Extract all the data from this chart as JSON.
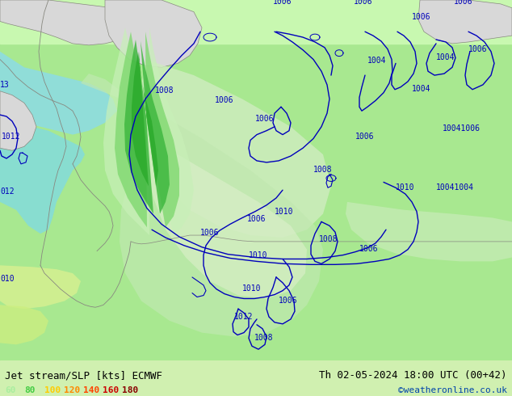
{
  "title_left": "Jet stream/SLP [kts] ECMWF",
  "title_right": "Th 02-05-2024 18:00 UTC (00+42)",
  "credit": "©weatheronline.co.uk",
  "legend_values": [
    "60",
    "80",
    "100",
    "120",
    "140",
    "160",
    "180"
  ],
  "legend_colors": [
    "#aaeea0",
    "#44cc44",
    "#ffcc00",
    "#ff8800",
    "#ff4400",
    "#cc0000",
    "#880000"
  ],
  "bg_color": "#a8e890",
  "land_green": "#b8f0a0",
  "land_light": "#c8f8b0",
  "land_pale": "#e0f8d0",
  "sea_teal": "#88ddd0",
  "sea_light": "#a0e8e0",
  "grey_land": "#c8c8c8",
  "grey_light": "#d8d8d8",
  "bottom_bar_color": "#d0f0b0",
  "contour_color": "#0000bb",
  "border_color": "#888880",
  "fig_width": 6.34,
  "fig_height": 4.9,
  "dpi": 100,
  "credit_color": "#0044aa",
  "title_fontsize": 9,
  "credit_fontsize": 8,
  "legend_fontsize": 8
}
